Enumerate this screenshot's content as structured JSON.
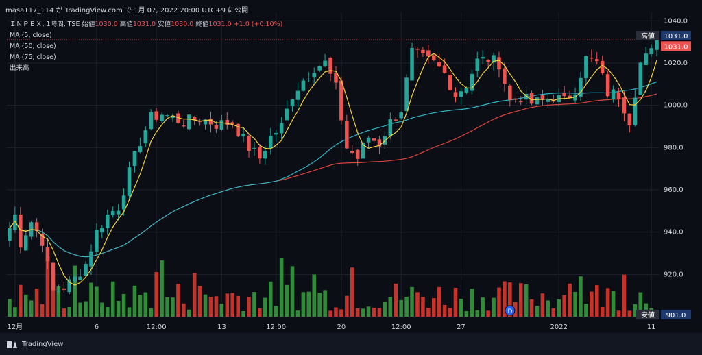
{
  "header": {
    "caption": "masa117_114 が TradingView.com で 1月 07, 2022 20:00 UTC+9 に公開"
  },
  "legend": {
    "symbol_line_prefix": "ＩＮＰＥＸ, 1時間, TSE",
    "ohlc": [
      {
        "label": "始値",
        "value": "1030.0"
      },
      {
        "label": "高値",
        "value": "1031.0"
      },
      {
        "label": "安値",
        "value": "1030.0"
      },
      {
        "label": "終値",
        "value": "1031.0"
      }
    ],
    "change": "+1.0 (+0.10%)",
    "ma5": "MA (5, close)",
    "ma50": "MA (50, close)",
    "ma75": "MA (75, close)",
    "volume": "出来高"
  },
  "footer": {
    "brand": "TradingView"
  },
  "colors": {
    "up": "#26a69a",
    "down": "#ef5350",
    "vol_up": "#3aa142",
    "vol_down": "#e8392f",
    "ma5": "#f5d33c",
    "ma50": "#2bb8c6",
    "ma75": "#e0443c"
  },
  "chart_data": {
    "type": "candlestick",
    "title": "ＩＮＰＥＸ, 1時間, TSE",
    "y_axis": {
      "range": [
        900,
        1044
      ],
      "ticks": [
        "920.0",
        "940.0",
        "960.0",
        "980.0",
        "1000.0",
        "1020.0",
        "1040.0"
      ],
      "tick_values": [
        920,
        940,
        960,
        980,
        1000,
        1020,
        1040
      ]
    },
    "x_axis": {
      "tick_labels": [
        {
          "label": "12月",
          "index": 1
        },
        {
          "label": "6",
          "index": 16
        },
        {
          "label": "12:00",
          "index": 27
        },
        {
          "label": "13",
          "index": 39
        },
        {
          "label": "12:00",
          "index": 49
        },
        {
          "label": "20",
          "index": 61
        },
        {
          "label": "12:00",
          "index": 72
        },
        {
          "label": "27",
          "index": 83
        },
        {
          "label": "2022",
          "index": 101
        },
        {
          "label": "11",
          "index": 118
        }
      ]
    },
    "price_tags": {
      "high": {
        "label": "高値",
        "value": 1031.0,
        "text": "1031.0"
      },
      "last": {
        "value": 1031.0,
        "text": "1031.0"
      },
      "low": {
        "label": "安値",
        "value": 901.0,
        "text": "901.0"
      }
    },
    "event_marker": {
      "label": "D",
      "index": 92
    },
    "anchor_points": [
      {
        "i": 0,
        "close": 942
      },
      {
        "i": 1,
        "close": 948
      },
      {
        "i": 2,
        "close": 935
      },
      {
        "i": 4,
        "close": 945
      },
      {
        "i": 6,
        "close": 936
      },
      {
        "i": 8,
        "close": 912
      },
      {
        "i": 10,
        "close": 914
      },
      {
        "i": 12,
        "close": 918
      },
      {
        "i": 14,
        "close": 925
      },
      {
        "i": 16,
        "close": 940
      },
      {
        "i": 18,
        "close": 948
      },
      {
        "i": 20,
        "close": 952
      },
      {
        "i": 22,
        "close": 968
      },
      {
        "i": 24,
        "close": 983
      },
      {
        "i": 26,
        "close": 994
      },
      {
        "i": 28,
        "close": 996
      },
      {
        "i": 30,
        "close": 994
      },
      {
        "i": 32,
        "close": 992
      },
      {
        "i": 35,
        "close": 994
      },
      {
        "i": 38,
        "close": 991
      },
      {
        "i": 41,
        "close": 992
      },
      {
        "i": 44,
        "close": 980
      },
      {
        "i": 46,
        "close": 975
      },
      {
        "i": 48,
        "close": 985
      },
      {
        "i": 50,
        "close": 990
      },
      {
        "i": 52,
        "close": 1005
      },
      {
        "i": 54,
        "close": 1012
      },
      {
        "i": 56,
        "close": 1018
      },
      {
        "i": 58,
        "close": 1020
      },
      {
        "i": 60,
        "close": 1008
      },
      {
        "i": 62,
        "close": 980
      },
      {
        "i": 64,
        "close": 975
      },
      {
        "i": 66,
        "close": 985
      },
      {
        "i": 68,
        "close": 982
      },
      {
        "i": 70,
        "close": 992
      },
      {
        "i": 72,
        "close": 998
      },
      {
        "i": 74,
        "close": 1025
      },
      {
        "i": 76,
        "close": 1022
      },
      {
        "i": 78,
        "close": 1020
      },
      {
        "i": 80,
        "close": 1015
      },
      {
        "i": 82,
        "close": 1005
      },
      {
        "i": 84,
        "close": 1010
      },
      {
        "i": 86,
        "close": 1021
      },
      {
        "i": 88,
        "close": 1022
      },
      {
        "i": 90,
        "close": 1020
      },
      {
        "i": 92,
        "close": 1002
      },
      {
        "i": 94,
        "close": 1004
      },
      {
        "i": 96,
        "close": 1001
      },
      {
        "i": 98,
        "close": 1002
      },
      {
        "i": 100,
        "close": 1004
      },
      {
        "i": 102,
        "close": 1002
      },
      {
        "i": 104,
        "close": 1008
      },
      {
        "i": 106,
        "close": 1022
      },
      {
        "i": 108,
        "close": 1020
      },
      {
        "i": 110,
        "close": 1006
      },
      {
        "i": 112,
        "close": 1005
      },
      {
        "i": 114,
        "close": 993
      },
      {
        "i": 116,
        "close": 1020
      },
      {
        "i": 118,
        "close": 1025
      },
      {
        "i": 119,
        "close": 1031
      }
    ],
    "bar_count": 120,
    "series": [
      {
        "name": "MA (5, close)",
        "kind": "ma",
        "period": 5
      },
      {
        "name": "MA (50, close)",
        "kind": "ma",
        "period": 50
      },
      {
        "name": "MA (75, close)",
        "kind": "ma",
        "period": 75
      },
      {
        "name": "出来高",
        "kind": "volume"
      }
    ]
  }
}
